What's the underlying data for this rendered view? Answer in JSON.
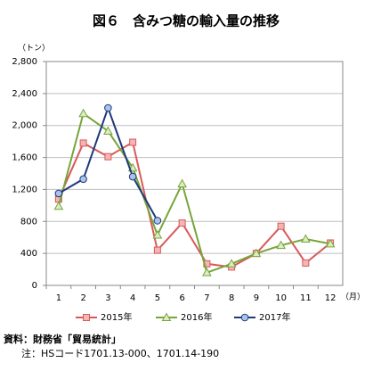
{
  "chart_data": {
    "type": "line",
    "title": "図６　含みつ糖の輸入量の推移",
    "y_label": "（トン）",
    "x_label": "（月）",
    "categories": [
      "1",
      "2",
      "3",
      "4",
      "5",
      "6",
      "7",
      "8",
      "9",
      "10",
      "11",
      "12"
    ],
    "series": [
      {
        "name": "2015年",
        "color": "#d9595a",
        "marker": "square",
        "marker_fill": "#f4b6b4",
        "values": [
          1080,
          1780,
          1610,
          1790,
          440,
          780,
          270,
          230,
          400,
          740,
          280,
          530
        ]
      },
      {
        "name": "2016年",
        "color": "#77a53a",
        "marker": "triangle",
        "marker_fill": "#dcecc4",
        "values": [
          990,
          2150,
          1930,
          1470,
          630,
          1270,
          160,
          270,
          400,
          500,
          580,
          520
        ]
      },
      {
        "name": "2017年",
        "color": "#1f3a7a",
        "marker": "circle",
        "marker_fill": "#a9c4e8",
        "values": [
          1150,
          1330,
          2220,
          1360,
          810,
          null,
          null,
          null,
          null,
          null,
          null,
          null
        ]
      }
    ],
    "ylim": [
      0,
      2800
    ],
    "yticks": [
      0,
      400,
      800,
      {
        "value": 1200,
        "label": "1,200"
      },
      {
        "value": 1600,
        "label": "1,600"
      },
      {
        "value": 2000,
        "label": "2,000"
      },
      {
        "value": 2400,
        "label": "2,400"
      },
      {
        "value": 2800,
        "label": "2,800"
      }
    ],
    "grid": true,
    "legend": "bottom",
    "notes": [
      "資料：財務省「貿易統計」",
      "注：HSコード1701.13-000、1701.14-190"
    ]
  }
}
